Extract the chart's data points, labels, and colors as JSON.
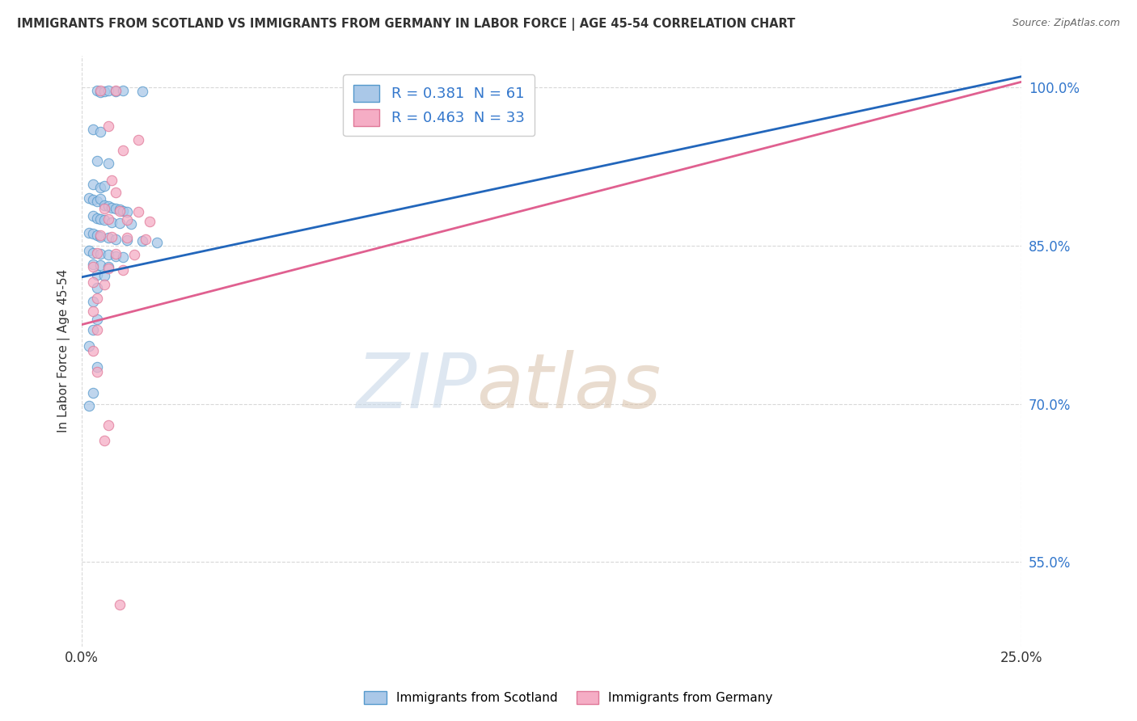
{
  "title": "IMMIGRANTS FROM SCOTLAND VS IMMIGRANTS FROM GERMANY IN LABOR FORCE | AGE 45-54 CORRELATION CHART",
  "source": "Source: ZipAtlas.com",
  "ylabel_label": "In Labor Force | Age 45-54",
  "x_tick_labels": [
    "0.0%",
    "25.0%"
  ],
  "x_tick_vals": [
    0.0,
    0.25
  ],
  "y_ticks_labels": [
    "100.0%",
    "85.0%",
    "70.0%",
    "55.0%"
  ],
  "y_tick_vals": [
    1.0,
    0.85,
    0.7,
    0.55
  ],
  "xlim": [
    0.0,
    0.25
  ],
  "ylim": [
    0.47,
    1.03
  ],
  "blue_line": {
    "x0": 0.0,
    "y0": 0.82,
    "x1": 0.25,
    "y1": 1.01
  },
  "pink_line": {
    "x0": 0.0,
    "y0": 0.775,
    "x1": 0.25,
    "y1": 1.005
  },
  "scotland_scatter": [
    [
      0.004,
      0.997
    ],
    [
      0.005,
      0.995
    ],
    [
      0.006,
      0.996
    ],
    [
      0.007,
      0.997
    ],
    [
      0.009,
      0.996
    ],
    [
      0.011,
      0.997
    ],
    [
      0.016,
      0.996
    ],
    [
      0.003,
      0.96
    ],
    [
      0.005,
      0.958
    ],
    [
      0.004,
      0.93
    ],
    [
      0.007,
      0.928
    ],
    [
      0.003,
      0.908
    ],
    [
      0.005,
      0.905
    ],
    [
      0.006,
      0.906
    ],
    [
      0.002,
      0.895
    ],
    [
      0.003,
      0.893
    ],
    [
      0.004,
      0.892
    ],
    [
      0.005,
      0.894
    ],
    [
      0.006,
      0.888
    ],
    [
      0.007,
      0.887
    ],
    [
      0.008,
      0.886
    ],
    [
      0.009,
      0.885
    ],
    [
      0.01,
      0.884
    ],
    [
      0.011,
      0.883
    ],
    [
      0.012,
      0.882
    ],
    [
      0.003,
      0.878
    ],
    [
      0.004,
      0.876
    ],
    [
      0.005,
      0.875
    ],
    [
      0.006,
      0.874
    ],
    [
      0.008,
      0.872
    ],
    [
      0.01,
      0.871
    ],
    [
      0.013,
      0.87
    ],
    [
      0.002,
      0.862
    ],
    [
      0.003,
      0.861
    ],
    [
      0.004,
      0.86
    ],
    [
      0.005,
      0.858
    ],
    [
      0.007,
      0.857
    ],
    [
      0.009,
      0.856
    ],
    [
      0.012,
      0.855
    ],
    [
      0.016,
      0.854
    ],
    [
      0.02,
      0.853
    ],
    [
      0.002,
      0.845
    ],
    [
      0.003,
      0.843
    ],
    [
      0.005,
      0.842
    ],
    [
      0.007,
      0.841
    ],
    [
      0.009,
      0.84
    ],
    [
      0.011,
      0.839
    ],
    [
      0.003,
      0.832
    ],
    [
      0.005,
      0.831
    ],
    [
      0.007,
      0.83
    ],
    [
      0.004,
      0.822
    ],
    [
      0.006,
      0.821
    ],
    [
      0.004,
      0.81
    ],
    [
      0.003,
      0.797
    ],
    [
      0.004,
      0.78
    ],
    [
      0.003,
      0.77
    ],
    [
      0.002,
      0.755
    ],
    [
      0.004,
      0.735
    ],
    [
      0.003,
      0.71
    ],
    [
      0.002,
      0.698
    ]
  ],
  "germany_scatter": [
    [
      0.005,
      0.997
    ],
    [
      0.009,
      0.997
    ],
    [
      0.007,
      0.963
    ],
    [
      0.015,
      0.95
    ],
    [
      0.011,
      0.94
    ],
    [
      0.008,
      0.912
    ],
    [
      0.009,
      0.9
    ],
    [
      0.006,
      0.885
    ],
    [
      0.01,
      0.883
    ],
    [
      0.015,
      0.882
    ],
    [
      0.007,
      0.875
    ],
    [
      0.012,
      0.874
    ],
    [
      0.018,
      0.873
    ],
    [
      0.005,
      0.86
    ],
    [
      0.008,
      0.858
    ],
    [
      0.012,
      0.857
    ],
    [
      0.017,
      0.856
    ],
    [
      0.004,
      0.843
    ],
    [
      0.009,
      0.842
    ],
    [
      0.014,
      0.841
    ],
    [
      0.003,
      0.83
    ],
    [
      0.007,
      0.828
    ],
    [
      0.011,
      0.827
    ],
    [
      0.003,
      0.815
    ],
    [
      0.006,
      0.813
    ],
    [
      0.004,
      0.8
    ],
    [
      0.003,
      0.788
    ],
    [
      0.004,
      0.77
    ],
    [
      0.003,
      0.75
    ],
    [
      0.004,
      0.73
    ],
    [
      0.007,
      0.68
    ],
    [
      0.006,
      0.665
    ],
    [
      0.01,
      0.51
    ]
  ],
  "bg_color": "#ffffff",
  "grid_color": "#d8d8d8",
  "scatter_blue_fill": "#aac8e8",
  "scatter_blue_edge": "#5599cc",
  "scatter_pink_fill": "#f5adc5",
  "scatter_pink_edge": "#e07898",
  "blue_line_color": "#2266bb",
  "pink_line_color": "#e06090",
  "legend_blue_face": "#aac8e8",
  "legend_pink_face": "#f5adc5",
  "tick_color": "#3377cc",
  "title_color": "#333333",
  "watermark_zip_color": "#c8d8e8",
  "watermark_atlas_color": "#d8c0a8"
}
